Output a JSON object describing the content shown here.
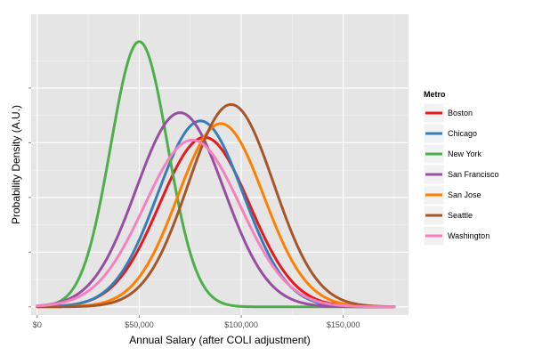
{
  "chart_data": {
    "type": "line",
    "xlabel": "Annual Salary (after COLI adjustment)",
    "ylabel": "Probability Density (A.U.)",
    "xlim": [
      -3000,
      182000
    ],
    "ylim": [
      -0.03,
      1.07
    ],
    "x_ticks": [
      {
        "value": 0,
        "label": "$0"
      },
      {
        "value": 50000,
        "label": "$50,000"
      },
      {
        "value": 100000,
        "label": "$100,000"
      },
      {
        "value": 150000,
        "label": "$150,000"
      }
    ],
    "y_ticks": [
      0,
      0.2,
      0.4,
      0.6,
      0.8
    ],
    "x_range": [
      0,
      175000
    ],
    "grid": true,
    "legend": {
      "title": "Metro",
      "position": "right"
    },
    "series": [
      {
        "name": "Boston",
        "color": "#e41a1c",
        "mean": 82000,
        "sd": 22000,
        "peak": 0.62
      },
      {
        "name": "Chicago",
        "color": "#377eb8",
        "mean": 80000,
        "sd": 21000,
        "peak": 0.68
      },
      {
        "name": "New York",
        "color": "#4daf4a",
        "mean": 50000,
        "sd": 14000,
        "peak": 0.97
      },
      {
        "name": "San Francisco",
        "color": "#984ea3",
        "mean": 70000,
        "sd": 21500,
        "peak": 0.71
      },
      {
        "name": "San Jose",
        "color": "#ff7f00",
        "mean": 90000,
        "sd": 21000,
        "peak": 0.67
      },
      {
        "name": "Seattle",
        "color": "#a65628",
        "mean": 95000,
        "sd": 21000,
        "peak": 0.74
      },
      {
        "name": "Washington",
        "color": "#f781bf",
        "mean": 76000,
        "sd": 23500,
        "peak": 0.61
      }
    ]
  }
}
